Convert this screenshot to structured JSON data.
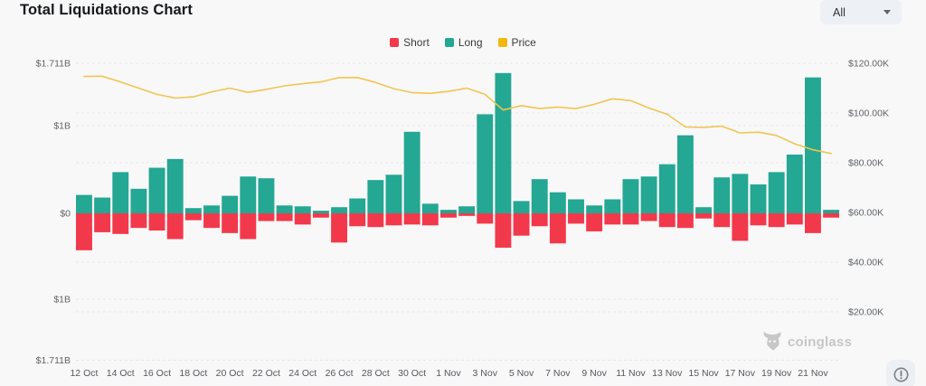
{
  "header": {
    "title": "Total Liquidations Chart",
    "range_selector": {
      "value": "All",
      "icon": "caret-down"
    }
  },
  "legend": [
    {
      "label": "Short",
      "color": "#f2394b"
    },
    {
      "label": "Long",
      "color": "#24a793"
    },
    {
      "label": "Price",
      "color": "#f0b90b"
    }
  ],
  "watermark": {
    "text": "coinglass",
    "icon": "coinglass-logo"
  },
  "footer": {
    "info_icon": "alert-circle"
  },
  "chart_data": {
    "type": "bar",
    "subtype": "diverging-bars-with-line",
    "title": "Total Liquidations Chart",
    "grid": true,
    "legend_position": "top-center",
    "categories": [
      "12 Oct",
      "13 Oct",
      "14 Oct",
      "15 Oct",
      "16 Oct",
      "17 Oct",
      "18 Oct",
      "19 Oct",
      "20 Oct",
      "21 Oct",
      "22 Oct",
      "23 Oct",
      "24 Oct",
      "25 Oct",
      "26 Oct",
      "27 Oct",
      "28 Oct",
      "29 Oct",
      "30 Oct",
      "31 Oct",
      "1 Nov",
      "2 Nov",
      "3 Nov",
      "4 Nov",
      "5 Nov",
      "6 Nov",
      "7 Nov",
      "8 Nov",
      "9 Nov",
      "10 Nov",
      "11 Nov",
      "12 Nov",
      "13 Nov",
      "14 Nov",
      "15 Nov",
      "16 Nov",
      "17 Nov",
      "18 Nov",
      "19 Nov",
      "20 Nov",
      "21 Nov",
      "22 Nov"
    ],
    "x_tick_labels": [
      "12 Oct",
      "14 Oct",
      "16 Oct",
      "18 Oct",
      "20 Oct",
      "22 Oct",
      "24 Oct",
      "26 Oct",
      "28 Oct",
      "30 Oct",
      "1 Nov",
      "3 Nov",
      "5 Nov",
      "7 Nov",
      "9 Nov",
      "11 Nov",
      "13 Nov",
      "15 Nov",
      "17 Nov",
      "19 Nov",
      "21 Nov"
    ],
    "series": [
      {
        "name": "Long",
        "type": "bar",
        "direction": "up",
        "unit": "billion USD",
        "color": "#24a793",
        "values": [
          0.21,
          0.18,
          0.47,
          0.28,
          0.52,
          0.62,
          0.06,
          0.09,
          0.2,
          0.42,
          0.4,
          0.09,
          0.08,
          0.03,
          0.07,
          0.17,
          0.38,
          0.44,
          0.93,
          0.11,
          0.04,
          0.08,
          1.13,
          1.6,
          0.14,
          0.39,
          0.24,
          0.16,
          0.09,
          0.16,
          0.39,
          0.42,
          0.56,
          0.89,
          0.07,
          0.41,
          0.45,
          0.33,
          0.47,
          0.67,
          1.55,
          0.04
        ]
      },
      {
        "name": "Short",
        "type": "bar",
        "direction": "down",
        "unit": "billion USD",
        "color": "#f2394b",
        "values": [
          0.43,
          0.22,
          0.24,
          0.17,
          0.2,
          0.3,
          0.08,
          0.17,
          0.23,
          0.3,
          0.09,
          0.09,
          0.13,
          0.05,
          0.34,
          0.15,
          0.16,
          0.14,
          0.13,
          0.14,
          0.05,
          0.03,
          0.12,
          0.4,
          0.26,
          0.15,
          0.35,
          0.12,
          0.21,
          0.13,
          0.13,
          0.09,
          0.16,
          0.17,
          0.06,
          0.16,
          0.32,
          0.14,
          0.16,
          0.13,
          0.23,
          0.05
        ]
      },
      {
        "name": "Price",
        "type": "line",
        "axis": "right",
        "unit": "thousand USD",
        "color": "#f0c552",
        "values": [
          114.7,
          114.8,
          112.5,
          110.0,
          107.5,
          106.0,
          106.5,
          108.5,
          110.0,
          108.3,
          109.5,
          110.9,
          111.8,
          112.5,
          114.2,
          114.3,
          112.3,
          109.8,
          108.2,
          107.9,
          108.7,
          110.0,
          107.5,
          101.2,
          103.0,
          101.8,
          102.4,
          101.8,
          103.5,
          105.7,
          105.0,
          102.0,
          99.5,
          94.4,
          94.2,
          94.7,
          92.0,
          92.3,
          91.0,
          87.6,
          85.2,
          83.7
        ]
      }
    ],
    "left_axis": {
      "title": "Liquidations",
      "range_B": [
        -1.711,
        1.711
      ],
      "ticks": [
        {
          "label": "$1.711B",
          "value": 1.711
        },
        {
          "label": "$1B",
          "value": 1
        },
        {
          "label": "$0",
          "value": 0
        },
        {
          "label": "$1B",
          "value": -1
        },
        {
          "label": "$1.711B",
          "value": -1.711
        }
      ]
    },
    "right_axis": {
      "title": "Price",
      "ticks": [
        {
          "label": "$120.00K",
          "value": 120
        },
        {
          "label": "$100.00K",
          "value": 100
        },
        {
          "label": "$80.00K",
          "value": 80
        },
        {
          "label": "$60.00K",
          "value": 60
        },
        {
          "label": "$40.00K",
          "value": 40
        },
        {
          "label": "$20.00K",
          "value": 20
        }
      ]
    }
  }
}
